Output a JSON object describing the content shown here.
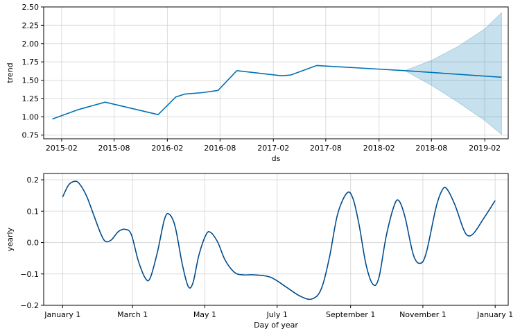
{
  "chart_data": [
    {
      "type": "line",
      "panel": "trend",
      "title": "",
      "xlabel": "ds",
      "ylabel": "trend",
      "x_type": "date",
      "xlim": [
        "2014-12-01",
        "2019-04-23"
      ],
      "ylim": [
        0.7,
        2.5
      ],
      "grid": true,
      "x_ticks": [
        "2015-02",
        "2015-08",
        "2016-02",
        "2016-08",
        "2017-02",
        "2017-08",
        "2018-02",
        "2018-08",
        "2019-02"
      ],
      "y_ticks": [
        0.75,
        1.0,
        1.25,
        1.5,
        1.75,
        2.0,
        2.25,
        2.5
      ],
      "y_tick_labels": [
        "0.75",
        "1.00",
        "1.25",
        "1.50",
        "1.75",
        "2.00",
        "2.25",
        "2.50"
      ],
      "line_color": "#0072B2",
      "band_color": "#0072B2",
      "series": [
        {
          "values": [
            [
              "2014-12-31",
              0.97
            ],
            [
              "2015-04-01",
              1.1
            ],
            [
              "2015-07-01",
              1.2
            ],
            [
              "2015-12-31",
              1.03
            ],
            [
              "2016-03-01",
              1.27
            ],
            [
              "2016-04-01",
              1.31
            ],
            [
              "2016-06-01",
              1.33
            ],
            [
              "2016-07-25",
              1.36
            ],
            [
              "2016-09-28",
              1.63
            ],
            [
              "2017-03-01",
              1.56
            ],
            [
              "2017-04-01",
              1.57
            ],
            [
              "2017-07-01",
              1.7
            ],
            [
              "2018-05-01",
              1.63
            ],
            [
              "2019-03-31",
              1.54
            ]
          ]
        }
      ],
      "uncertainty": {
        "x": [
          "2018-05-01",
          "2018-08-01",
          "2018-11-01",
          "2019-02-01",
          "2019-03-31"
        ],
        "lower": [
          1.63,
          1.43,
          1.2,
          0.95,
          0.76
        ],
        "upper": [
          1.63,
          1.77,
          1.96,
          2.2,
          2.42
        ]
      }
    },
    {
      "type": "line",
      "panel": "yearly",
      "title": "",
      "xlabel": "Day of year",
      "ylabel": "yearly",
      "xlim": [
        -16,
        376
      ],
      "ylim": [
        -0.2,
        0.22
      ],
      "grid": true,
      "x_ticks": [
        0,
        59,
        120,
        181,
        243,
        304,
        365
      ],
      "x_tick_labels": [
        "January 1",
        "March 1",
        "May 1",
        "July 1",
        "September 1",
        "November 1",
        "January 1"
      ],
      "y_ticks": [
        -0.2,
        -0.1,
        0.0,
        0.1,
        0.2
      ],
      "y_tick_labels": [
        "−0.2",
        "−0.1",
        "0.0",
        "0.1",
        "0.2"
      ],
      "line_color": "#004C8C",
      "series": [
        {
          "values": [
            [
              0,
              0.145
            ],
            [
              5,
              0.183
            ],
            [
              10,
              0.195
            ],
            [
              14,
              0.188
            ],
            [
              20,
              0.15
            ],
            [
              26,
              0.09
            ],
            [
              32,
              0.03
            ],
            [
              36,
              0.004
            ],
            [
              41,
              0.008
            ],
            [
              47,
              0.035
            ],
            [
              53,
              0.042
            ],
            [
              58,
              0.025
            ],
            [
              64,
              -0.06
            ],
            [
              70,
              -0.115
            ],
            [
              74,
              -0.112
            ],
            [
              80,
              -0.03
            ],
            [
              86,
              0.075
            ],
            [
              90,
              0.09
            ],
            [
              95,
              0.05
            ],
            [
              101,
              -0.07
            ],
            [
              106,
              -0.14
            ],
            [
              110,
              -0.128
            ],
            [
              115,
              -0.04
            ],
            [
              121,
              0.025
            ],
            [
              125,
              0.032
            ],
            [
              131,
              0.0
            ],
            [
              137,
              -0.055
            ],
            [
              145,
              -0.095
            ],
            [
              152,
              -0.103
            ],
            [
              161,
              -0.103
            ],
            [
              175,
              -0.11
            ],
            [
              188,
              -0.14
            ],
            [
              200,
              -0.17
            ],
            [
              210,
              -0.18
            ],
            [
              218,
              -0.15
            ],
            [
              225,
              -0.05
            ],
            [
              232,
              0.09
            ],
            [
              240,
              0.158
            ],
            [
              245,
              0.14
            ],
            [
              250,
              0.06
            ],
            [
              256,
              -0.07
            ],
            [
              262,
              -0.134
            ],
            [
              267,
              -0.11
            ],
            [
              273,
              0.02
            ],
            [
              280,
              0.12
            ],
            [
              284,
              0.132
            ],
            [
              289,
              0.08
            ],
            [
              296,
              -0.04
            ],
            [
              302,
              -0.066
            ],
            [
              307,
              -0.03
            ],
            [
              315,
              0.11
            ],
            [
              320,
              0.165
            ],
            [
              324,
              0.172
            ],
            [
              331,
              0.12
            ],
            [
              338,
              0.045
            ],
            [
              342,
              0.022
            ],
            [
              347,
              0.03
            ],
            [
              355,
              0.075
            ],
            [
              365,
              0.134
            ]
          ]
        }
      ]
    }
  ]
}
